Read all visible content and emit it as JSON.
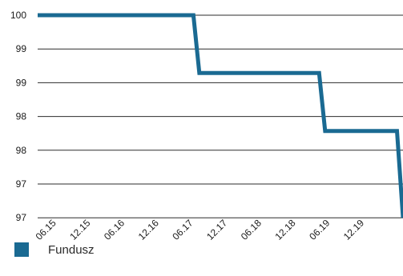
{
  "chart_data": {
    "type": "line",
    "y_tick_labels": [
      "100",
      "99",
      "99",
      "98",
      "98",
      "97",
      "97"
    ],
    "x_tick_labels": [
      "06.15",
      "12.15",
      "06.16",
      "12.16",
      "06.17",
      "12.17",
      "06.18",
      "12.18",
      "06.19",
      "12.19"
    ],
    "ylim": [
      96.5,
      100
    ],
    "x_axis": {
      "start": "2015-01",
      "end": "2020-02"
    },
    "series": [
      {
        "name": "Fundusz",
        "color": "#1a6a92",
        "points": [
          {
            "x": "2015-01",
            "y": 100
          },
          {
            "x": "2017-03",
            "y": 100
          },
          {
            "x": "2017-04",
            "y": 99.0
          },
          {
            "x": "2018-12",
            "y": 99.0
          },
          {
            "x": "2019-01",
            "y": 98.0
          },
          {
            "x": "2020-01",
            "y": 98.0
          },
          {
            "x": "2020-02",
            "y": 96.5
          }
        ]
      }
    ],
    "grid": {
      "horizontal": true,
      "vertical": false
    },
    "legend_position": "bottom-left"
  }
}
